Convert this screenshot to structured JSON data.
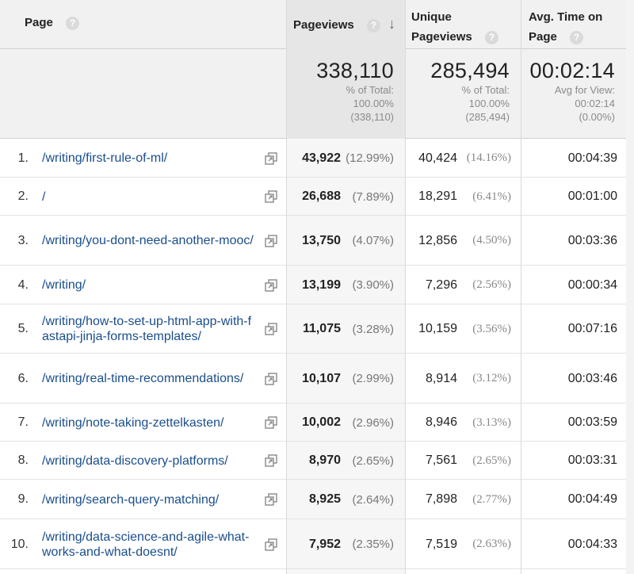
{
  "header": {
    "page_label": "Page",
    "pageviews_label": "Pageviews",
    "unique_line1": "Unique",
    "unique_line2": "Pageviews",
    "avg_line1": "Avg. Time on",
    "avg_line2": "Page",
    "help_glyph": "?",
    "sort_glyph": "↓"
  },
  "totals": {
    "pageviews": {
      "value": "338,110",
      "line1": "% of Total:",
      "line2": "100.00%",
      "line3": "(338,110)"
    },
    "unique": {
      "value": "285,494",
      "line1": "% of Total:",
      "line2": "100.00%",
      "line3": "(285,494)"
    },
    "avg_time": {
      "value": "00:02:14",
      "line1": "Avg for View:",
      "line2": "00:02:14",
      "line3": "(0.00%)"
    }
  },
  "rows": [
    {
      "num": "1.",
      "page": "/writing/first-rule-of-ml/",
      "pageviews": "43,922",
      "pv_pct": "(12.99%)",
      "unique": "40,424",
      "u_pct": "(14.16%)",
      "time": "00:04:39"
    },
    {
      "num": "2.",
      "page": "/",
      "pageviews": "26,688",
      "pv_pct": "(7.89%)",
      "unique": "18,291",
      "u_pct": "(6.41%)",
      "time": "00:01:00"
    },
    {
      "num": "3.",
      "page": "/writing/you-dont-need-another-mooc/",
      "pageviews": "13,750",
      "pv_pct": "(4.07%)",
      "unique": "12,856",
      "u_pct": "(4.50%)",
      "time": "00:03:36"
    },
    {
      "num": "4.",
      "page": "/writing/",
      "pageviews": "13,199",
      "pv_pct": "(3.90%)",
      "unique": "7,296",
      "u_pct": "(2.56%)",
      "time": "00:00:34"
    },
    {
      "num": "5.",
      "page": "/writing/how-to-set-up-html-app-with-fastapi-jinja-forms-templates/",
      "pageviews": "11,075",
      "pv_pct": "(3.28%)",
      "unique": "10,159",
      "u_pct": "(3.56%)",
      "time": "00:07:16"
    },
    {
      "num": "6.",
      "page": "/writing/real-time-recommendations/",
      "pageviews": "10,107",
      "pv_pct": "(2.99%)",
      "unique": "8,914",
      "u_pct": "(3.12%)",
      "time": "00:03:46"
    },
    {
      "num": "7.",
      "page": "/writing/note-taking-zettelkasten/",
      "pageviews": "10,002",
      "pv_pct": "(2.96%)",
      "unique": "8,946",
      "u_pct": "(3.13%)",
      "time": "00:03:59"
    },
    {
      "num": "8.",
      "page": "/writing/data-discovery-platforms/",
      "pageviews": "8,970",
      "pv_pct": "(2.65%)",
      "unique": "7,561",
      "u_pct": "(2.65%)",
      "time": "00:03:31"
    },
    {
      "num": "9.",
      "page": "/writing/search-query-matching/",
      "pageviews": "8,925",
      "pv_pct": "(2.64%)",
      "unique": "7,898",
      "u_pct": "(2.77%)",
      "time": "00:04:49"
    },
    {
      "num": "10.",
      "page": "/writing/data-science-and-agile-what-works-and-what-doesnt/",
      "pageviews": "7,952",
      "pv_pct": "(2.35%)",
      "unique": "7,519",
      "u_pct": "(2.63%)",
      "time": "00:04:33"
    }
  ]
}
